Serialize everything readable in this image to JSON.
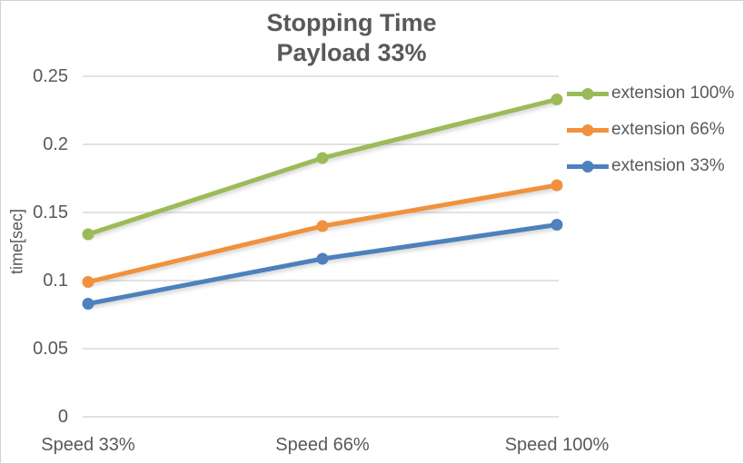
{
  "title": {
    "line1": "Stopping Time",
    "line2": "Payload 33%"
  },
  "colors": {
    "text": "#595959",
    "gridline": "#d9d9d9",
    "background": "#ffffff",
    "border": "#d3d3d3"
  },
  "chart_data": {
    "type": "line",
    "title": "Stopping Time\nPayload 33%",
    "categories": [
      "Speed 33%",
      "Speed 66%",
      "Speed 100%"
    ],
    "series": [
      {
        "name": "extension 100%",
        "color": "#9bbb59",
        "values": [
          0.134,
          0.19,
          0.233
        ]
      },
      {
        "name": "extension 66%",
        "color": "#f1913d",
        "values": [
          0.099,
          0.14,
          0.17
        ]
      },
      {
        "name": "extension 33%",
        "color": "#4e81bd",
        "values": [
          0.083,
          0.116,
          0.141
        ]
      }
    ],
    "xlabel": "",
    "ylabel": "time[sec]",
    "ylim": [
      0,
      0.25
    ],
    "yticks": [
      0,
      0.05,
      0.1,
      0.15,
      0.2,
      0.25
    ],
    "ytick_labels": [
      "0",
      "0.05",
      "0.1",
      "0.15",
      "0.2",
      "0.25"
    ],
    "grid": true,
    "legend_position": "right",
    "marker": "circle"
  }
}
